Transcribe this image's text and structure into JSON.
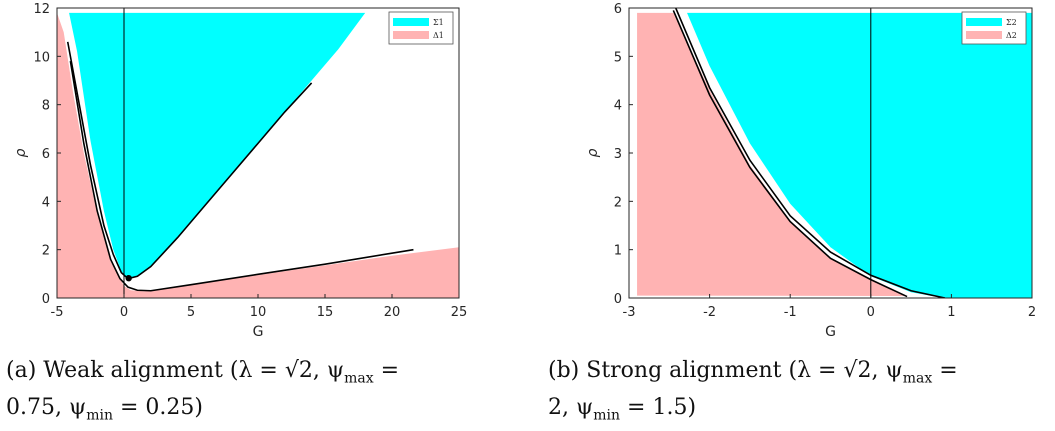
{
  "colors": {
    "sigma_fill": "#00FFFF",
    "delta_fill": "#FFB3B3",
    "curve": "#000000",
    "axis": "#262626"
  },
  "chart_data": [
    {
      "type": "area",
      "xlabel": "G",
      "ylabel": "ρ",
      "xlim": [
        -5,
        25
      ],
      "ylim": [
        0,
        12
      ],
      "xticks": [
        -5,
        0,
        5,
        10,
        15,
        20,
        25
      ],
      "yticks": [
        0,
        2,
        4,
        6,
        8,
        10,
        12
      ],
      "xtick_labels": [
        "-5",
        "0",
        "5",
        "10",
        "15",
        "20",
        "25"
      ],
      "ytick_labels": [
        "0",
        "2",
        "4",
        "6",
        "8",
        "10",
        "12"
      ],
      "grid": false,
      "legend_position": "top-right",
      "legend": [
        "Σ1",
        "Δ1"
      ],
      "series": [
        {
          "name": "Σ1",
          "color": "#00FFFF",
          "points": [
            [
              -4.1,
              11.8
            ],
            [
              -3.5,
              10.2
            ],
            [
              -2.5,
              6.5
            ],
            [
              -1.5,
              3.6
            ],
            [
              -0.8,
              2.0
            ],
            [
              -0.2,
              1.1
            ],
            [
              0.3,
              0.8
            ],
            [
              1.0,
              0.9
            ],
            [
              2.0,
              1.3
            ],
            [
              4.0,
              2.5
            ],
            [
              6.0,
              3.8
            ],
            [
              8.0,
              5.1
            ],
            [
              10.0,
              6.4
            ],
            [
              12.0,
              7.7
            ],
            [
              14.0,
              9.0
            ],
            [
              16.0,
              10.3
            ],
            [
              18.0,
              11.8
            ]
          ]
        },
        {
          "name": "Δ1",
          "color": "#FFB3B3",
          "points": [
            [
              -5.0,
              11.8
            ],
            [
              -4.5,
              11.0
            ],
            [
              -3.8,
              8.5
            ],
            [
              -3.0,
              6.0
            ],
            [
              -2.0,
              3.5
            ],
            [
              -1.0,
              1.5
            ],
            [
              0.0,
              0.5
            ],
            [
              0.5,
              0.32
            ],
            [
              1.5,
              0.28
            ],
            [
              5.0,
              0.55
            ],
            [
              10.0,
              0.95
            ],
            [
              15.0,
              1.35
            ],
            [
              20.0,
              1.75
            ],
            [
              25.0,
              2.1
            ]
          ]
        }
      ],
      "curves": [
        {
          "points": [
            [
              -4.2,
              10.6
            ],
            [
              -3.5,
              8.5
            ],
            [
              -2.5,
              5.5
            ],
            [
              -1.5,
              3.0
            ],
            [
              -0.8,
              1.8
            ],
            [
              -0.2,
              1.05
            ],
            [
              0.3,
              0.8
            ],
            [
              1.0,
              0.9
            ],
            [
              2.0,
              1.3
            ],
            [
              4.0,
              2.5
            ],
            [
              6.0,
              3.8
            ],
            [
              8.0,
              5.1
            ],
            [
              10.0,
              6.4
            ],
            [
              12.0,
              7.7
            ],
            [
              14.0,
              8.9
            ]
          ]
        },
        {
          "points": [
            [
              -4.0,
              9.8
            ],
            [
              -3.0,
              6.4
            ],
            [
              -2.0,
              3.6
            ],
            [
              -1.0,
              1.6
            ],
            [
              -0.3,
              0.8
            ],
            [
              0.3,
              0.45
            ],
            [
              1.0,
              0.32
            ],
            [
              2.0,
              0.3
            ],
            [
              5.0,
              0.55
            ],
            [
              10.0,
              0.98
            ],
            [
              15.0,
              1.4
            ],
            [
              21.6,
              2.0
            ]
          ]
        }
      ],
      "markers": [
        [
          0.35,
          0.82
        ]
      ],
      "vertical_lines": [
        0
      ]
    },
    {
      "type": "area",
      "xlabel": "G",
      "ylabel": "ρ",
      "xlim": [
        -3,
        2
      ],
      "ylim": [
        0,
        6
      ],
      "xticks": [
        -3,
        -2,
        -1,
        0,
        1,
        2
      ],
      "yticks": [
        0,
        1,
        2,
        3,
        4,
        5,
        6
      ],
      "xtick_labels": [
        "-3",
        "-2",
        "-1",
        "0",
        "1",
        "2"
      ],
      "ytick_labels": [
        "0",
        "1",
        "2",
        "3",
        "4",
        "5",
        "6"
      ],
      "grid": false,
      "legend_position": "top-right",
      "legend": [
        "Σ2",
        "Δ2"
      ],
      "series": [
        {
          "name": "Σ2",
          "color": "#00FFFF",
          "points": [
            [
              -2.28,
              5.9
            ],
            [
              -2.0,
              4.8
            ],
            [
              -1.5,
              3.2
            ],
            [
              -1.0,
              1.95
            ],
            [
              -0.5,
              1.05
            ],
            [
              0.0,
              0.45
            ],
            [
              0.5,
              0.12
            ],
            [
              0.9,
              0.0
            ]
          ]
        },
        {
          "name": "Δ2",
          "color": "#FFB3B3",
          "points": [
            [
              -2.45,
              5.9
            ],
            [
              -2.0,
              4.3
            ],
            [
              -1.5,
              2.75
            ],
            [
              -1.0,
              1.6
            ],
            [
              -0.5,
              0.82
            ],
            [
              0.0,
              0.38
            ],
            [
              0.45,
              0.04
            ]
          ]
        }
      ],
      "curves": [
        {
          "points": [
            [
              -2.42,
              6.0
            ],
            [
              -2.0,
              4.35
            ],
            [
              -1.5,
              2.85
            ],
            [
              -1.0,
              1.7
            ],
            [
              -0.5,
              0.95
            ],
            [
              0.0,
              0.47
            ],
            [
              0.5,
              0.15
            ],
            [
              0.92,
              0.0
            ]
          ]
        },
        {
          "points": [
            [
              -2.45,
              5.95
            ],
            [
              -2.0,
              4.2
            ],
            [
              -1.5,
              2.7
            ],
            [
              -1.0,
              1.58
            ],
            [
              -0.5,
              0.82
            ],
            [
              0.0,
              0.38
            ],
            [
              0.45,
              0.03
            ]
          ]
        }
      ],
      "markers": [],
      "vertical_lines": [
        0
      ]
    }
  ],
  "captions": {
    "a": {
      "prefix": "(a) Weak alignment (",
      "lambda": "λ = ",
      "sqrt": "√2",
      "mid": ", ψ",
      "sub_max": "max",
      "eq": " =",
      "line2": "0.75, ψ",
      "sub_min": "min",
      "end": " = 0.25)"
    },
    "b": {
      "prefix": "(b) Strong alignment (",
      "lambda": "λ = ",
      "sqrt": "√2",
      "mid": ", ψ",
      "sub_max": "max",
      "eq": " =",
      "line2": "2, ψ",
      "sub_min": "min",
      "end": " = 1.5)"
    }
  }
}
